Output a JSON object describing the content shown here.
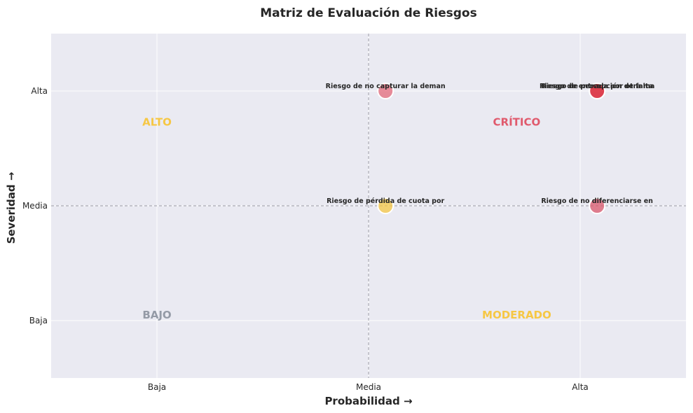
{
  "chart_data": {
    "type": "scatter",
    "title": "Matriz de Evaluación de Riesgos",
    "xlabel": "Probabilidad →",
    "ylabel": "Severidad →",
    "x_categories": [
      "Baja",
      "Media",
      "Alta"
    ],
    "y_categories": [
      "Baja",
      "Media",
      "Alta"
    ],
    "xlim": [
      0.5,
      3.5
    ],
    "ylim": [
      0.5,
      3.5
    ],
    "grid": true,
    "reference_lines": {
      "x": 2,
      "y": 2
    },
    "quadrants": [
      {
        "label": "ALTO",
        "x": 1,
        "y": 2.73,
        "color": "#f6c744"
      },
      {
        "label": "CRÍTICO",
        "x": 2.7,
        "y": 2.73,
        "color": "#e05a6d"
      },
      {
        "label": "BAJO",
        "x": 1,
        "y": 1.05,
        "color": "#949aa6"
      },
      {
        "label": "MODERADO",
        "x": 2.7,
        "y": 1.05,
        "color": "#f6c744"
      }
    ],
    "points": [
      {
        "label": "Riesgo de no capturar la deman",
        "x": 2.08,
        "y": 3.0,
        "color": "#e36a7a"
      },
      {
        "label": "Riesgo de percepción de falta",
        "x": 3.08,
        "y": 3.0,
        "color": "#dc3545"
      },
      {
        "label": "Riesgo de entrada por otra ma",
        "x": 3.08,
        "y": 3.0,
        "color": "#dc3545"
      },
      {
        "label": "Riesgo de pérdida de cuota por",
        "x": 2.08,
        "y": 2.0,
        "color": "#f6c744"
      },
      {
        "label": "Riesgo de no diferenciarse en",
        "x": 3.08,
        "y": 2.0,
        "color": "#d9576b"
      }
    ]
  }
}
